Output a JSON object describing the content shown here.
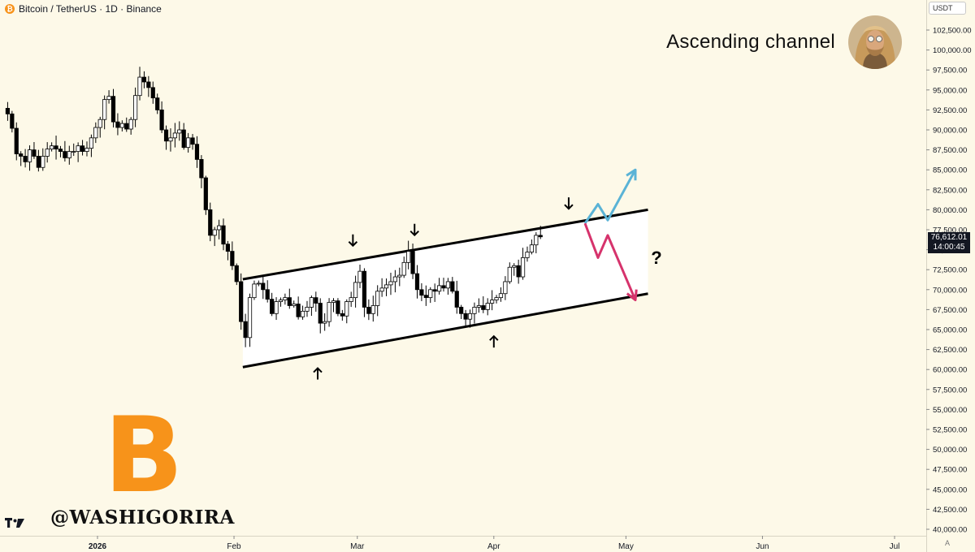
{
  "header": {
    "symbol_title": "Bitcoin / TetherUS · 1D · Binance",
    "coin_icon": "bitcoin-icon"
  },
  "headline": "Ascending channel",
  "watermark": "@WASHIGORIRA",
  "currency_selector": "USDT",
  "last_price": {
    "value": "76,612.01",
    "countdown": "14:00:45"
  },
  "auto_scale_label": "A",
  "brand_logo": "tradingview-logo",
  "colors": {
    "background": "#fdf9e8",
    "up_candle": "#ffffff",
    "down_candle": "#000000",
    "bullish_arrow": "#5ab3d6",
    "bearish_arrow": "#d6336c",
    "bitcoin_orange": "#f7931a",
    "channel_fill": "#ffffff"
  },
  "chart_data": {
    "type": "candlestick",
    "title": "Bitcoin / TetherUS · 1D · Binance",
    "annotation_title": "Ascending channel",
    "x_axis": {
      "tick_labels": [
        "2026",
        "Feb",
        "Mar",
        "Apr",
        "May",
        "Jun",
        "Jul"
      ]
    },
    "y_axis": {
      "position": "right",
      "ylim": [
        40000,
        102500
      ],
      "tick_labels": [
        "102,500.00",
        "100,000.00",
        "97,500.00",
        "95,000.00",
        "92,500.00",
        "90,000.00",
        "87,500.00",
        "85,000.00",
        "82,500.00",
        "80,000.00",
        "77,500.00",
        "75,000.00",
        "72,500.00",
        "70,000.00",
        "67,500.00",
        "65,000.00",
        "62,500.00",
        "60,000.00",
        "57,500.00",
        "55,000.00",
        "52,500.00",
        "50,000.00",
        "47,500.00",
        "45,000.00",
        "42,500.00",
        "40,000.00"
      ]
    },
    "grid": false,
    "close_series": [
      92000,
      90200,
      87000,
      86700,
      86000,
      87500,
      86700,
      85300,
      86700,
      87600,
      88000,
      87600,
      87300,
      86500,
      87300,
      87300,
      88000,
      87300,
      87700,
      89000,
      90300,
      91300,
      93800,
      94200,
      91000,
      90300,
      90800,
      90100,
      91300,
      94300,
      96600,
      96000,
      95300,
      94000,
      92500,
      90000,
      88600,
      89000,
      89600,
      90000,
      87800,
      89000,
      88200,
      86300,
      84000,
      80000,
      76800,
      77500,
      78000,
      75700,
      74800,
      73000,
      71000,
      66000,
      64000,
      69000,
      70700,
      70800,
      70000,
      68800,
      67000,
      68500,
      68700,
      69000,
      68000,
      68200,
      66600,
      67300,
      67800,
      69000,
      68300,
      65800,
      66000,
      68400,
      68600,
      67000,
      66700,
      68500,
      69000,
      70900,
      72300,
      67800,
      67000,
      68000,
      69800,
      70200,
      70600,
      71000,
      71600,
      71800,
      73400,
      74800,
      72000,
      70000,
      69300,
      69000,
      70000,
      69800,
      70500,
      70200,
      71000,
      69800,
      67800,
      67000,
      66300,
      67000,
      67800,
      68000,
      67500,
      68300,
      68700,
      69000,
      69500,
      71000,
      72800,
      73000,
      71600,
      74000,
      74700,
      75600,
      76800,
      76612
    ],
    "channel": {
      "upper_line": [
        {
          "date": "2026-02-03",
          "price": 71300
        },
        {
          "date": "2026-05-06",
          "price": 80000
        }
      ],
      "lower_line": [
        {
          "date": "2026-02-03",
          "price": 60300
        },
        {
          "date": "2026-05-06",
          "price": 69500
        }
      ]
    },
    "touch_markers": {
      "resistance_touches": [
        "2026-02-28",
        "2026-03-14",
        "2026-04-18"
      ],
      "support_touches": [
        "2026-02-20",
        "2026-04-01"
      ]
    },
    "scenarios": [
      {
        "name": "bullish",
        "color": "#5ab3d6",
        "path_prices": [
          78300,
          80700,
          78700,
          85000
        ]
      },
      {
        "name": "bearish",
        "color": "#d6336c",
        "path_prices": [
          78300,
          74000,
          76800,
          68700
        ]
      }
    ],
    "question_mark": "?"
  }
}
